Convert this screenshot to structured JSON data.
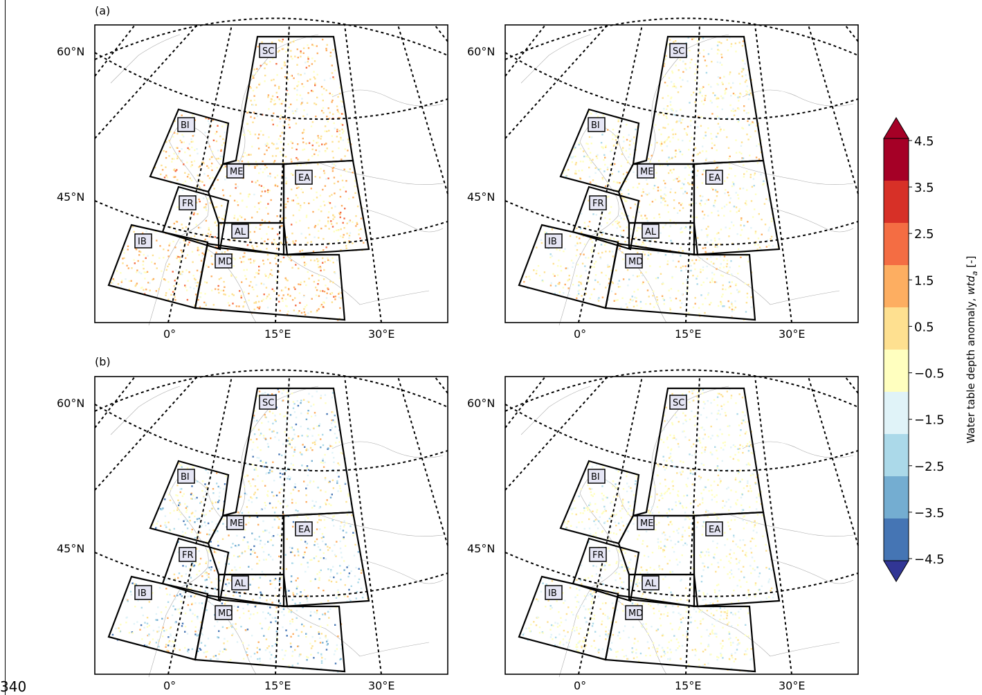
{
  "line_number": "340",
  "panel_labels": [
    "(a)",
    "(b)"
  ],
  "lat_labels": [
    "60°N",
    "45°N"
  ],
  "lon_labels": [
    "0°",
    "15°E",
    "30°E"
  ],
  "regions": [
    "SC",
    "BI",
    "ME",
    "EA",
    "FR",
    "AL",
    "IB",
    "MD"
  ],
  "colorbar": {
    "label_main": "Water table depth anomaly, ",
    "label_var": "wtd",
    "label_sub": "a",
    "label_unit": " [-]",
    "ticks": [
      "4.5",
      "3.5",
      "2.5",
      "1.5",
      "0.5",
      "−0.5",
      "−1.5",
      "−2.5",
      "−3.5",
      "−4.5"
    ],
    "colors": [
      "#a50026",
      "#d73027",
      "#f46d43",
      "#fdae61",
      "#fee090",
      "#ffffbf",
      "#e0f3f8",
      "#abd9e9",
      "#74add1",
      "#4575b4",
      "#313695"
    ]
  },
  "panels": [
    {
      "id": "a-left",
      "style": "warm-strong"
    },
    {
      "id": "a-right",
      "style": "warm-weak"
    },
    {
      "id": "b-left",
      "style": "mixed-strong"
    },
    {
      "id": "b-right",
      "style": "mixed-weak"
    }
  ]
}
